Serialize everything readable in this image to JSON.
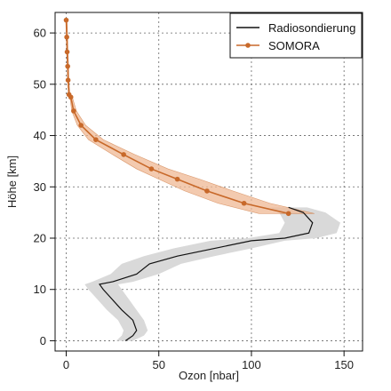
{
  "chart_data": {
    "type": "line",
    "title": "",
    "xlabel": "Ozon [nbar]",
    "ylabel": "Höhe [km]",
    "xlim": [
      -6,
      160
    ],
    "ylim": [
      -2,
      64
    ],
    "xticks": [
      0,
      50,
      100,
      150
    ],
    "yticks": [
      0,
      10,
      20,
      30,
      40,
      50,
      60
    ],
    "grid": true,
    "legend": "top-right",
    "colors": {
      "radiosonde": "#111111",
      "radiosonde_band": "#d9d9d9",
      "somora": "#c8692a",
      "somora_band": "#efb894"
    },
    "series": [
      {
        "name": "Radiosondierung",
        "x": [
          120,
          128,
          133,
          131,
          118,
          100,
          80,
          60,
          45,
          38,
          25,
          18,
          20,
          25,
          30,
          36,
          38,
          36,
          32
        ],
        "y": [
          26,
          25,
          23,
          21,
          20,
          19.5,
          18,
          16.5,
          15,
          13,
          11.5,
          11,
          10,
          8,
          6,
          4,
          2,
          1,
          0
        ],
        "band_low": [
          110,
          115,
          118,
          115,
          98,
          78,
          58,
          42,
          30,
          24,
          14,
          10,
          12,
          17,
          22,
          28,
          31,
          30,
          27
        ],
        "band_high": [
          130,
          140,
          148,
          146,
          135,
          118,
          100,
          80,
          62,
          50,
          36,
          28,
          30,
          34,
          38,
          42,
          44,
          42,
          36
        ]
      },
      {
        "name": "SOMORA",
        "x": [
          0,
          0.3,
          0.5,
          0.8,
          1,
          1.5,
          2.5,
          4,
          8,
          16,
          31,
          46,
          60,
          76,
          96,
          120
        ],
        "y": [
          62.5,
          59.2,
          56.3,
          53.5,
          50.8,
          48,
          47.5,
          44.8,
          42,
          39.2,
          36.3,
          33.5,
          31.5,
          29.2,
          26.8,
          24.8
        ],
        "band_low": [
          0,
          0.2,
          0.4,
          0.6,
          0.8,
          1.2,
          2,
          3,
          6,
          12,
          25,
          38,
          50,
          64,
          82,
          104
        ],
        "band_high": [
          0.5,
          0.8,
          1,
          1.3,
          1.5,
          2,
          3.3,
          5.5,
          10.5,
          20,
          37,
          55,
          72,
          90,
          110,
          134
        ]
      }
    ]
  }
}
